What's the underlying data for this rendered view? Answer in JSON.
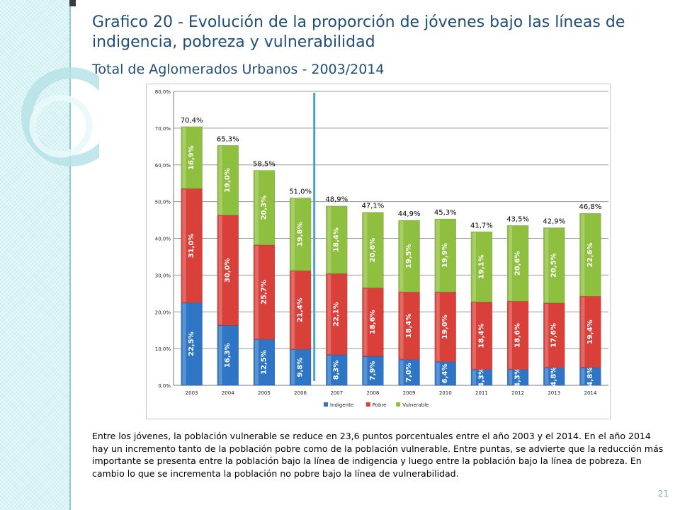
{
  "slide": {
    "title": "Grafico 20 - Evolución de la proporción de jóvenes bajo las líneas de indigencia, pobreza y vulnerabilidad",
    "subtitle": "Total de Aglomerados Urbanos - 2003/2014",
    "caption": "Entre los jóvenes, la población vulnerable se reduce en 23,6 puntos porcentuales entre el año 2003 y el 2014. En el año 2014 hay un incremento tanto de la población pobre como de la población vulnerable. Entre puntas, se advierte que la reducción más importante se presenta entre la población bajo la línea de indigencia y luego entre la población bajo la línea de pobreza. En cambio lo que se incrementa la población no pobre bajo la línea de vulnerabilidad.",
    "page_number": "21"
  },
  "chart_data": {
    "type": "bar",
    "stacked": true,
    "categories": [
      "2003",
      "2004",
      "2005",
      "2006",
      "2007",
      "2008",
      "2009",
      "2010",
      "2011",
      "2012",
      "2013",
      "2014"
    ],
    "series": [
      {
        "name": "Indigente",
        "color": "#2e75c6",
        "values": [
          22.5,
          16.3,
          12.5,
          9.8,
          8.3,
          7.9,
          7.0,
          6.4,
          4.3,
          4.3,
          4.8,
          4.8
        ],
        "labels": [
          "22,5%",
          "16,3%",
          "12,5%",
          "9,8%",
          "8,3%",
          "7,9%",
          "7,0%",
          "6,4%",
          "4,3%",
          "4,3%",
          "4,8%",
          "4,8%"
        ]
      },
      {
        "name": "Pobre",
        "color": "#d9403a",
        "values": [
          31.0,
          30.0,
          25.7,
          21.4,
          22.1,
          18.6,
          18.4,
          19.0,
          18.4,
          18.6,
          17.6,
          19.4
        ],
        "labels": [
          "31,0%",
          "30,0%",
          "25,7%",
          "21,4%",
          "22,1%",
          "18,6%",
          "18,4%",
          "19,0%",
          "18,4%",
          "18,6%",
          "17,6%",
          "19,4%"
        ]
      },
      {
        "name": "Vulnerable",
        "color": "#8fbf3f",
        "values": [
          16.9,
          19.0,
          20.3,
          19.8,
          18.4,
          20.6,
          19.5,
          19.9,
          19.1,
          20.6,
          20.5,
          22.6
        ],
        "labels": [
          "16,9%",
          "19,0%",
          "20,3%",
          "19,8%",
          "18,4%",
          "20,6%",
          "19,5%",
          "19,9%",
          "19,1%",
          "20,6%",
          "20,5%",
          "22,6%"
        ]
      }
    ],
    "totals": [
      70.4,
      65.3,
      58.5,
      51.0,
      48.9,
      47.1,
      44.9,
      45.3,
      41.7,
      43.5,
      42.9,
      46.8
    ],
    "total_labels": [
      "70,4%",
      "65,3%",
      "58,5%",
      "51,0%",
      "48,9%",
      "47,1%",
      "44,9%",
      "45,3%",
      "41,7%",
      "43,5%",
      "42,9%",
      "46,8%"
    ],
    "ylim": [
      0,
      80
    ],
    "y_ticks": [
      0,
      10,
      20,
      30,
      40,
      50,
      60,
      70,
      80
    ],
    "y_tick_labels": [
      "0,0%",
      "10,0%",
      "20,0%",
      "30,0%",
      "40,0%",
      "50,0%",
      "60,0%",
      "70,0%",
      "80,0%"
    ],
    "grid": true,
    "legend": "bottom",
    "divider_after": "2006",
    "divider_color": "#4aa3c8"
  }
}
